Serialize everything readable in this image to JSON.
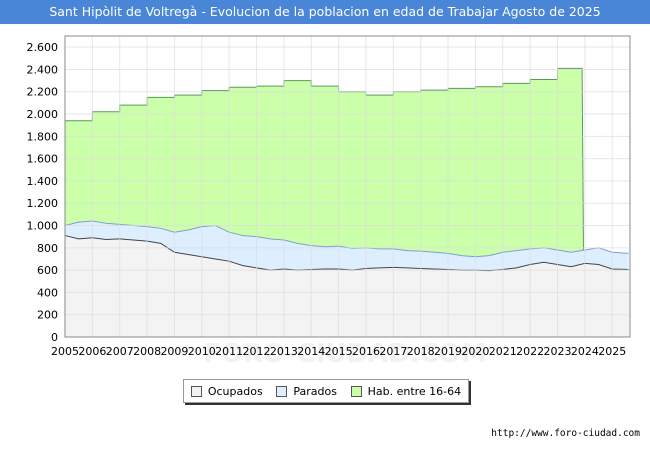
{
  "title": "Sant Hipòlit de Voltregà - Evolucion de la poblacion en edad de Trabajar Agosto de 2025",
  "source": "http://www.foro-ciudad.com",
  "watermark": "FORO-CIUDAD.COM",
  "colors": {
    "title_bg": "#4a86d8",
    "hab_fill": "#ccffaa",
    "hab_line": "#5a9a5a",
    "parados_fill": "#ddeeff",
    "parados_line": "#7f9fcf",
    "ocupados_fill": "#f3f3f3",
    "ocupados_line": "#444444",
    "grid": "#dddddd"
  },
  "legend": [
    {
      "label": "Ocupados",
      "color": "#f3f3f3"
    },
    {
      "label": "Parados",
      "color": "#ddeeff"
    },
    {
      "label": "Hab. entre 16-64",
      "color": "#ccffaa"
    }
  ],
  "chart_data": {
    "type": "area",
    "title": "Sant Hipòlit de Voltregà - Evolucion de la poblacion en edad de Trabajar Agosto de 2025",
    "xlabel": "",
    "ylabel": "",
    "xlim": [
      2005,
      2025.65
    ],
    "ylim": [
      0,
      2700
    ],
    "x_ticks": [
      2005,
      2006,
      2007,
      2008,
      2009,
      2010,
      2011,
      2012,
      2013,
      2014,
      2015,
      2016,
      2017,
      2018,
      2019,
      2020,
      2021,
      2022,
      2023,
      2024,
      2025
    ],
    "y_ticks": [
      0,
      200,
      400,
      600,
      800,
      1000,
      1200,
      1400,
      1600,
      1800,
      2000,
      2200,
      2400,
      2600
    ],
    "y_tick_labels": [
      "0",
      "200",
      "400",
      "600",
      "800",
      "1.000",
      "1.200",
      "1.400",
      "1.600",
      "1.800",
      "2.000",
      "2.200",
      "2.400",
      "2.600"
    ],
    "grid": true,
    "legend_position": "bottom-center",
    "series": [
      {
        "name": "Hab. entre 16-64",
        "x": [
          2005,
          2006,
          2007,
          2008,
          2009,
          2010,
          2011,
          2012,
          2013,
          2014,
          2015,
          2016,
          2017,
          2018,
          2019,
          2020,
          2021,
          2022,
          2023,
          2023.9
        ],
        "values": [
          1940,
          2020,
          2080,
          2150,
          2170,
          2210,
          2240,
          2250,
          2300,
          2250,
          2200,
          2170,
          2200,
          2215,
          2230,
          2245,
          2275,
          2310,
          2410,
          2410
        ]
      },
      {
        "name": "Parados",
        "x": [
          2005,
          2005.5,
          2006,
          2006.5,
          2007,
          2007.5,
          2008,
          2008.5,
          2009,
          2009.5,
          2010,
          2010.5,
          2011,
          2011.5,
          2012,
          2012.5,
          2013,
          2013.5,
          2014,
          2014.5,
          2015,
          2015.5,
          2016,
          2016.5,
          2017,
          2017.5,
          2018,
          2018.5,
          2019,
          2019.5,
          2020,
          2020.5,
          2021,
          2021.5,
          2022,
          2022.5,
          2023,
          2023.5,
          2024,
          2024.5,
          2025,
          2025.6
        ],
        "values": [
          1000,
          1030,
          1040,
          1020,
          1010,
          1000,
          990,
          975,
          940,
          960,
          990,
          1000,
          940,
          910,
          900,
          880,
          870,
          840,
          820,
          810,
          815,
          795,
          800,
          790,
          790,
          775,
          770,
          760,
          750,
          730,
          720,
          730,
          760,
          775,
          790,
          800,
          780,
          760,
          780,
          800,
          760,
          750
        ]
      },
      {
        "name": "Ocupados",
        "x": [
          2005,
          2005.5,
          2006,
          2006.5,
          2007,
          2007.5,
          2008,
          2008.5,
          2009,
          2009.5,
          2010,
          2010.5,
          2011,
          2011.5,
          2012,
          2012.5,
          2013,
          2013.5,
          2014,
          2014.5,
          2015,
          2015.5,
          2016,
          2016.5,
          2017,
          2017.5,
          2018,
          2018.5,
          2019,
          2019.5,
          2020,
          2020.5,
          2021,
          2021.5,
          2022,
          2022.5,
          2023,
          2023.5,
          2024,
          2024.5,
          2025,
          2025.6
        ],
        "values": [
          910,
          880,
          890,
          875,
          880,
          870,
          860,
          840,
          760,
          740,
          720,
          700,
          680,
          640,
          620,
          600,
          610,
          600,
          605,
          610,
          610,
          600,
          615,
          620,
          625,
          620,
          615,
          610,
          605,
          600,
          600,
          595,
          605,
          620,
          650,
          670,
          650,
          630,
          660,
          650,
          610,
          605
        ]
      }
    ]
  }
}
